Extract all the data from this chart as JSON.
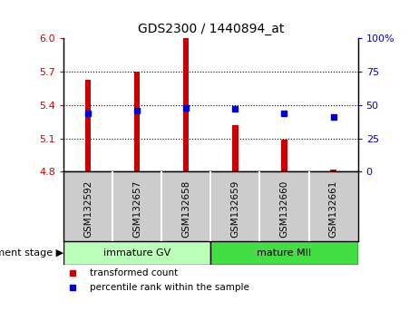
{
  "title": "GDS2300 / 1440894_at",
  "categories": [
    "GSM132592",
    "GSM132657",
    "GSM132658",
    "GSM132659",
    "GSM132660",
    "GSM132661"
  ],
  "bar_values": [
    5.63,
    5.7,
    6.0,
    5.22,
    5.09,
    4.82
  ],
  "bar_base": 4.8,
  "bar_color": "#cc0000",
  "bar_width": 0.12,
  "blue_values": [
    5.33,
    5.35,
    5.375,
    5.368,
    5.33,
    5.295
  ],
  "blue_color": "#0000cc",
  "ylim": [
    4.8,
    6.0
  ],
  "yticks_left": [
    4.8,
    5.1,
    5.4,
    5.7,
    6.0
  ],
  "yticks_right_vals": [
    4.8,
    5.1,
    5.4,
    5.7,
    6.0
  ],
  "yticks_right_labels": [
    "0",
    "25",
    "50",
    "75",
    "100%"
  ],
  "hlines": [
    5.1,
    5.4,
    5.7
  ],
  "group1_label": "immature GV",
  "group2_label": "mature MII",
  "group1_color": "#bbffbb",
  "group2_color": "#44dd44",
  "xlabel_left": "development stage",
  "legend_bar_label": "transformed count",
  "legend_dot_label": "percentile rank within the sample",
  "bg_plot": "#ffffff",
  "bg_xtick": "#cccccc",
  "left_tick_color": "#cc0000",
  "right_tick_color": "#0000cc",
  "title_fontsize": 10,
  "tick_fontsize": 8,
  "label_fontsize": 8
}
